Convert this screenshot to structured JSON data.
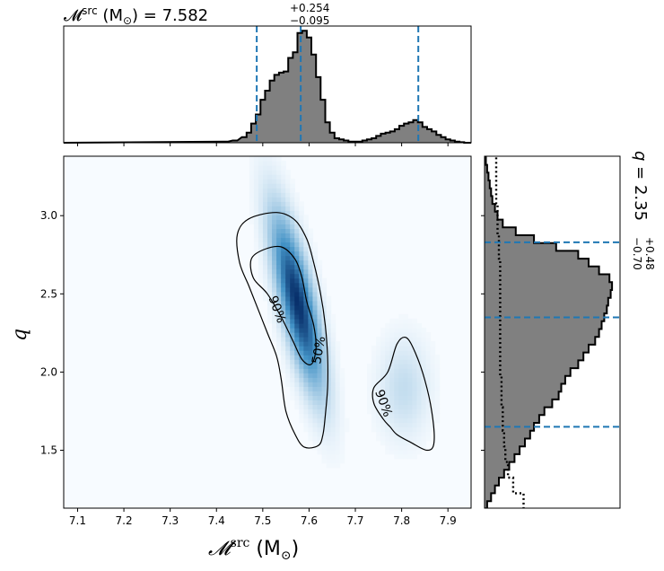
{
  "chart_data": [
    {
      "type": "area",
      "panel": "marginal-chirp-mass",
      "title": {
        "base": "𝓜",
        "sup": "src",
        "unit": " (M",
        "sun": "⊙",
        "unit_close": ") = 7.582",
        "upper": "+0.254",
        "lower": "−0.095"
      },
      "x": [
        7.42,
        7.44,
        7.46,
        7.47,
        7.48,
        7.49,
        7.5,
        7.51,
        7.52,
        7.53,
        7.54,
        7.55,
        7.56,
        7.57,
        7.58,
        7.59,
        7.6,
        7.61,
        7.62,
        7.63,
        7.64,
        7.65,
        7.66,
        7.67,
        7.68,
        7.69,
        7.7,
        7.71,
        7.72,
        7.73,
        7.74,
        7.75,
        7.76,
        7.77,
        7.78,
        7.79,
        7.8,
        7.81,
        7.82,
        7.83,
        7.84,
        7.85,
        7.86,
        7.87,
        7.88,
        7.89,
        7.9,
        7.91,
        7.92,
        7.93
      ],
      "values": [
        0.01,
        0.02,
        0.05,
        0.09,
        0.17,
        0.25,
        0.38,
        0.46,
        0.55,
        0.6,
        0.62,
        0.63,
        0.75,
        0.8,
        0.97,
        0.99,
        0.93,
        0.78,
        0.58,
        0.38,
        0.18,
        0.09,
        0.04,
        0.03,
        0.02,
        0.01,
        0.01,
        0.01,
        0.02,
        0.03,
        0.04,
        0.06,
        0.08,
        0.09,
        0.1,
        0.12,
        0.15,
        0.17,
        0.18,
        0.2,
        0.18,
        0.14,
        0.12,
        0.1,
        0.07,
        0.05,
        0.03,
        0.02,
        0.01,
        0.005
      ],
      "quantile_lines": [
        7.487,
        7.582,
        7.836
      ]
    },
    {
      "type": "heatmap",
      "panel": "joint",
      "xlabel": {
        "base": "𝓜",
        "sup": "src",
        "unit": " (M",
        "sun": "⊙",
        "unit_close": ")"
      },
      "ylabel": "q",
      "xlim": [
        7.07,
        7.95
      ],
      "ylim": [
        1.13,
        3.38
      ],
      "xticks": [
        "7.1",
        "7.2",
        "7.3",
        "7.4",
        "7.5",
        "7.6",
        "7.7",
        "7.8",
        "7.9"
      ],
      "yticks": [
        "1.5",
        "2.0",
        "2.5",
        "3.0"
      ],
      "contour_labels": [
        "90%",
        "50%",
        "90%"
      ],
      "density_modes": [
        {
          "x": 7.575,
          "q": 2.45,
          "sx": 0.035,
          "sq": 0.35,
          "rho": -0.75,
          "weight": 1.0
        },
        {
          "x": 7.805,
          "q": 1.9,
          "sx": 0.035,
          "sq": 0.2,
          "rho": 0.0,
          "weight": 0.14
        }
      ],
      "contour_90_main": [
        [
          7.47,
          2.98
        ],
        [
          7.53,
          3.02
        ],
        [
          7.57,
          2.97
        ],
        [
          7.595,
          2.85
        ],
        [
          7.61,
          2.7
        ],
        [
          7.625,
          2.5
        ],
        [
          7.635,
          2.3
        ],
        [
          7.64,
          2.1
        ],
        [
          7.64,
          1.9
        ],
        [
          7.635,
          1.72
        ],
        [
          7.63,
          1.6
        ],
        [
          7.62,
          1.53
        ],
        [
          7.59,
          1.52
        ],
        [
          7.57,
          1.6
        ],
        [
          7.55,
          1.75
        ],
        [
          7.54,
          1.95
        ],
        [
          7.53,
          2.1
        ],
        [
          7.51,
          2.25
        ],
        [
          7.49,
          2.4
        ],
        [
          7.47,
          2.55
        ],
        [
          7.45,
          2.7
        ],
        [
          7.445,
          2.88
        ],
        [
          7.47,
          2.98
        ]
      ],
      "contour_50_main": [
        [
          7.5,
          2.78
        ],
        [
          7.54,
          2.8
        ],
        [
          7.57,
          2.72
        ],
        [
          7.585,
          2.6
        ],
        [
          7.595,
          2.45
        ],
        [
          7.61,
          2.3
        ],
        [
          7.615,
          2.15
        ],
        [
          7.605,
          2.05
        ],
        [
          7.585,
          2.08
        ],
        [
          7.565,
          2.2
        ],
        [
          7.54,
          2.35
        ],
        [
          7.51,
          2.5
        ],
        [
          7.48,
          2.6
        ],
        [
          7.475,
          2.72
        ],
        [
          7.5,
          2.78
        ]
      ],
      "contour_90_second": [
        [
          7.77,
          2.0
        ],
        [
          7.79,
          2.18
        ],
        [
          7.81,
          2.22
        ],
        [
          7.83,
          2.12
        ],
        [
          7.85,
          1.95
        ],
        [
          7.865,
          1.75
        ],
        [
          7.87,
          1.55
        ],
        [
          7.855,
          1.5
        ],
        [
          7.82,
          1.55
        ],
        [
          7.79,
          1.6
        ],
        [
          7.775,
          1.65
        ],
        [
          7.76,
          1.7
        ],
        [
          7.74,
          1.8
        ],
        [
          7.74,
          1.9
        ],
        [
          7.77,
          2.0
        ]
      ]
    },
    {
      "type": "area",
      "panel": "marginal-q",
      "title": {
        "base": "q = 2.35",
        "upper": "+0.48",
        "lower": "−0.70"
      },
      "q": [
        1.15,
        1.2,
        1.25,
        1.3,
        1.35,
        1.4,
        1.45,
        1.5,
        1.55,
        1.6,
        1.65,
        1.7,
        1.75,
        1.8,
        1.85,
        1.9,
        1.95,
        2.0,
        2.05,
        2.1,
        2.15,
        2.2,
        2.25,
        2.3,
        2.35,
        2.4,
        2.45,
        2.5,
        2.55,
        2.6,
        2.65,
        2.7,
        2.75,
        2.8,
        2.85,
        2.9,
        2.95,
        3.0,
        3.05,
        3.1,
        3.15,
        3.2,
        3.25,
        3.3,
        3.35
      ],
      "values": [
        0.02,
        0.05,
        0.08,
        0.11,
        0.15,
        0.19,
        0.23,
        0.27,
        0.31,
        0.35,
        0.38,
        0.42,
        0.46,
        0.52,
        0.57,
        0.59,
        0.62,
        0.66,
        0.72,
        0.76,
        0.8,
        0.85,
        0.88,
        0.9,
        0.92,
        0.94,
        0.95,
        0.97,
        0.98,
        0.96,
        0.88,
        0.8,
        0.72,
        0.55,
        0.38,
        0.24,
        0.14,
        0.1,
        0.08,
        0.06,
        0.05,
        0.04,
        0.03,
        0.02,
        0.01
      ],
      "secondary_values": [
        0.3,
        0.3,
        0.22,
        0.22,
        0.18,
        0.18,
        0.16,
        0.16,
        0.15,
        0.15,
        0.14,
        0.14,
        0.14,
        0.13,
        0.13,
        0.13,
        0.13,
        0.12,
        0.12,
        0.12,
        0.12,
        0.12,
        0.12,
        0.12,
        0.12,
        0.12,
        0.12,
        0.12,
        0.12,
        0.12,
        0.12,
        0.12,
        0.11,
        0.11,
        0.11,
        0.1,
        0.1,
        0.1,
        0.1,
        0.09,
        0.09,
        0.09,
        0.09,
        0.09,
        0.09
      ],
      "quantile_lines": [
        1.65,
        2.35,
        2.83
      ]
    }
  ],
  "colors": {
    "fill": "#808080",
    "edge": "#000000",
    "quantile": "#1f77b4",
    "cmap_low": "#f7fbff",
    "cmap_high": "#08306b"
  }
}
